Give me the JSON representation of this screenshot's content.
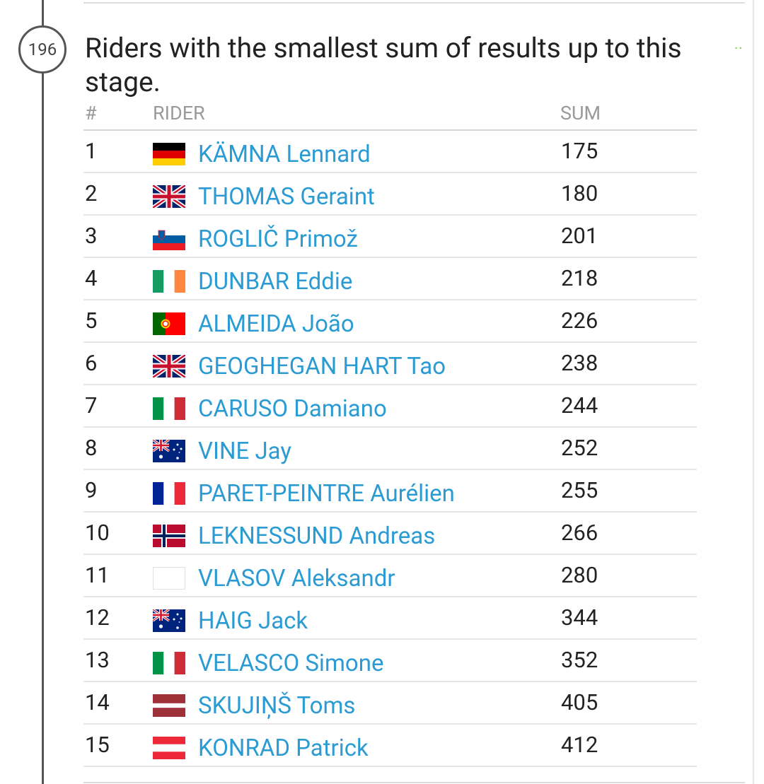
{
  "badge": "196",
  "title": "Riders with the smallest sum of results up to this stage.",
  "headers": {
    "num": "#",
    "rider": "RIDER",
    "sum": "SUM"
  },
  "rows": [
    {
      "num": "1",
      "flag": "de",
      "name": "KÄMNA Lennard",
      "sum": "175"
    },
    {
      "num": "2",
      "flag": "gb",
      "name": "THOMAS Geraint",
      "sum": "180"
    },
    {
      "num": "3",
      "flag": "si",
      "name": "ROGLIČ Primož",
      "sum": "201"
    },
    {
      "num": "4",
      "flag": "ie",
      "name": "DUNBAR Eddie",
      "sum": "218"
    },
    {
      "num": "5",
      "flag": "pt",
      "name": "ALMEIDA João",
      "sum": "226"
    },
    {
      "num": "6",
      "flag": "gb",
      "name": "GEOGHEGAN HART Tao",
      "sum": "238"
    },
    {
      "num": "7",
      "flag": "it",
      "name": "CARUSO Damiano",
      "sum": "244"
    },
    {
      "num": "8",
      "flag": "au",
      "name": "VINE Jay",
      "sum": "252"
    },
    {
      "num": "9",
      "flag": "fr",
      "name": "PARET-PEINTRE Aurélien",
      "sum": "255"
    },
    {
      "num": "10",
      "flag": "no",
      "name": "LEKNESSUND Andreas",
      "sum": "266"
    },
    {
      "num": "11",
      "flag": "blank",
      "name": "VLASOV Aleksandr",
      "sum": "280"
    },
    {
      "num": "12",
      "flag": "au",
      "name": "HAIG Jack",
      "sum": "344"
    },
    {
      "num": "13",
      "flag": "it",
      "name": "VELASCO Simone",
      "sum": "352"
    },
    {
      "num": "14",
      "flag": "lv",
      "name": "SKUJIŅŠ Toms",
      "sum": "405"
    },
    {
      "num": "15",
      "flag": "at",
      "name": "KONRAD Patrick",
      "sum": "412"
    }
  ]
}
